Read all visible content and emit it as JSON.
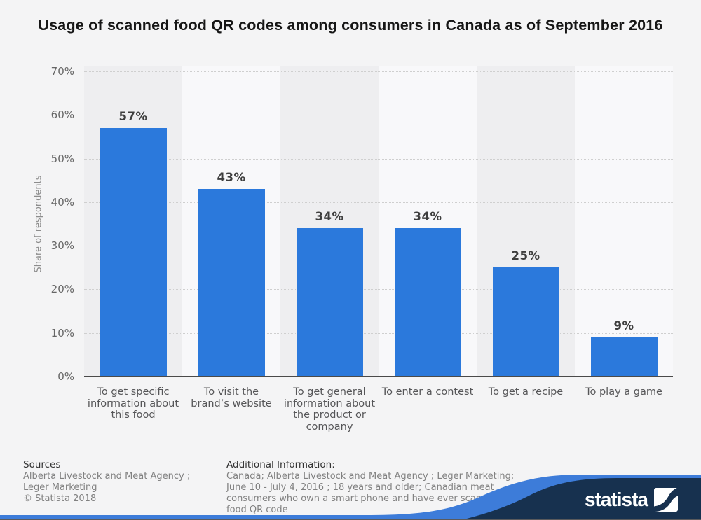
{
  "title": "Usage of scanned food QR codes among consumers in Canada as of September 2016",
  "chart_data": {
    "type": "bar",
    "categories": [
      "To get specific information about this food",
      "To visit the brand’s website",
      "To get general information about the product or company",
      "To enter a contest",
      "To get a recipe",
      "To play a game"
    ],
    "values": [
      57,
      43,
      34,
      34,
      25,
      9
    ],
    "value_labels": [
      "57%",
      "43%",
      "34%",
      "34%",
      "25%",
      "9%"
    ],
    "title": "Usage of scanned food QR codes among consumers in Canada as of September 2016",
    "xlabel": "",
    "ylabel": "Share of respondents",
    "ylim": [
      0,
      70
    ],
    "ytick_labels": [
      "70%",
      "60%",
      "50%",
      "40%",
      "30%",
      "20%",
      "10%",
      "0%"
    ],
    "grid": "horizontal-dotted",
    "legend": "none",
    "bar_color": "#2b79dc"
  },
  "footer": {
    "sources": {
      "heading": "Sources",
      "line1": "Alberta Livestock and Meat Agency ; Leger Marketing",
      "copyright": "© Statista 2018"
    },
    "additional": {
      "heading": "Additional Information:",
      "text": "Canada; Alberta Livestock and Meat Agency ; Leger Marketing; June 10 - July 4, 2016 ; 18 years and older; Canadian meat consumers who own a smart phone and have ever scanned a food QR code"
    },
    "brand": "statista"
  },
  "colors": {
    "bar": "#2b79dc",
    "page_background": "#f4f4f5",
    "band_dark": "#eeeef0",
    "band_light": "#f8f8fa",
    "axis_line": "#4a4a4a",
    "navy_wave": "#17314f",
    "blue_wave": "#3d7cd9"
  }
}
